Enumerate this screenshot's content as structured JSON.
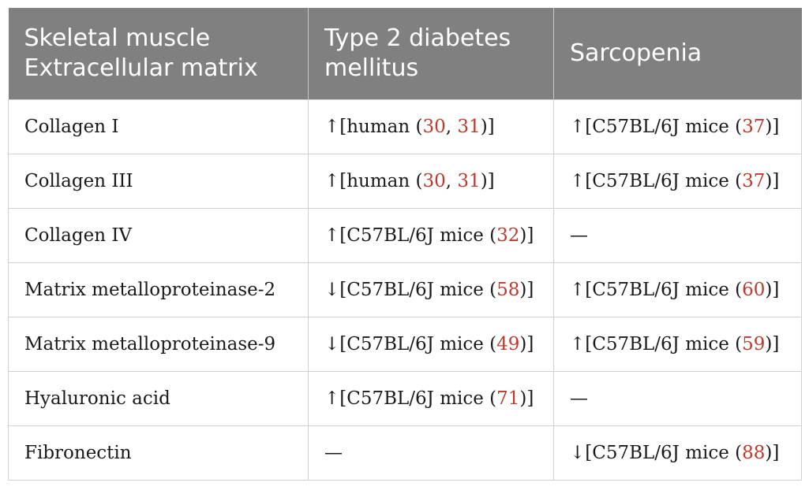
{
  "table": {
    "headers": [
      [
        "Skeletal muscle",
        "Extracellular matrix"
      ],
      [
        "Type 2 diabetes",
        "mellitus"
      ],
      [
        "Sarcopenia"
      ]
    ],
    "rows": [
      {
        "name": "Collagen I",
        "t2dm": {
          "prefix": "↑[human (",
          "refs": [
            "30",
            "31"
          ],
          "suffix": ")]"
        },
        "sarcopenia": {
          "prefix": "↑[C57BL/6J mice (",
          "refs": [
            "37"
          ],
          "suffix": ")]"
        }
      },
      {
        "name": "Collagen III",
        "t2dm": {
          "prefix": "↑[human (",
          "refs": [
            "30",
            "31"
          ],
          "suffix": ")]"
        },
        "sarcopenia": {
          "prefix": "↑[C57BL/6J mice (",
          "refs": [
            "37"
          ],
          "suffix": ")]"
        }
      },
      {
        "name": "Collagen IV",
        "t2dm": {
          "prefix": "↑[C57BL/6J mice (",
          "refs": [
            "32"
          ],
          "suffix": ")]"
        },
        "sarcopenia": {
          "prefix": "—",
          "refs": [],
          "suffix": ""
        }
      },
      {
        "name": "Matrix metalloproteinase-2",
        "t2dm": {
          "prefix": "↓[C57BL/6J mice (",
          "refs": [
            "58"
          ],
          "suffix": ")]"
        },
        "sarcopenia": {
          "prefix": "↑[C57BL/6J mice (",
          "refs": [
            "60"
          ],
          "suffix": ")]"
        }
      },
      {
        "name": "Matrix metalloproteinase-9",
        "t2dm": {
          "prefix": "↓[C57BL/6J mice (",
          "refs": [
            "49"
          ],
          "suffix": ")]"
        },
        "sarcopenia": {
          "prefix": "↑[C57BL/6J mice (",
          "refs": [
            "59"
          ],
          "suffix": ")]"
        }
      },
      {
        "name": "Hyaluronic acid",
        "t2dm": {
          "prefix": "↑[C57BL/6J mice (",
          "refs": [
            "71"
          ],
          "suffix": ")]"
        },
        "sarcopenia": {
          "prefix": "—",
          "refs": [],
          "suffix": ""
        }
      },
      {
        "name": "Fibronectin",
        "t2dm": {
          "prefix": "—",
          "refs": [],
          "suffix": ""
        },
        "sarcopenia": {
          "prefix": "↓[C57BL/6J mice (",
          "refs": [
            "88"
          ],
          "suffix": ")]"
        }
      }
    ]
  },
  "colors": {
    "header_bg": "#808080",
    "header_text": "#ffffff",
    "ref_link": "#c0392b"
  }
}
